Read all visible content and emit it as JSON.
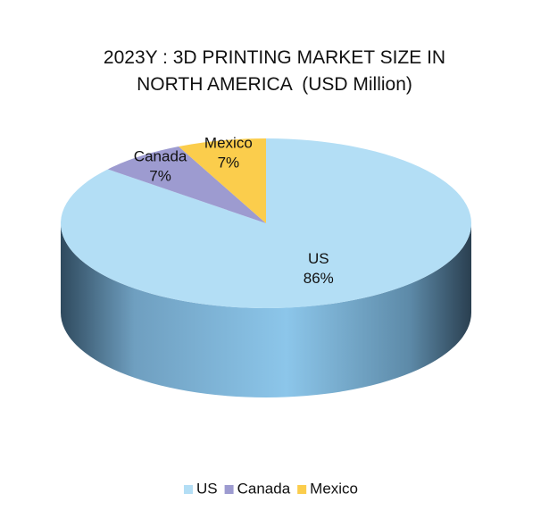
{
  "chart_data": {
    "type": "pie3d",
    "title": "2023Y : 3D PRINTING MARKET SIZE IN NORTH AMERICA  (USD Million)",
    "categories": [
      "US",
      "Canada",
      "Mexico"
    ],
    "values": [
      86,
      7,
      7
    ],
    "value_labels": [
      "86%",
      "7%",
      "7%"
    ],
    "colors": [
      "#b3def5",
      "#9d9bd0",
      "#fbcd4c"
    ],
    "legend": "bottom"
  }
}
